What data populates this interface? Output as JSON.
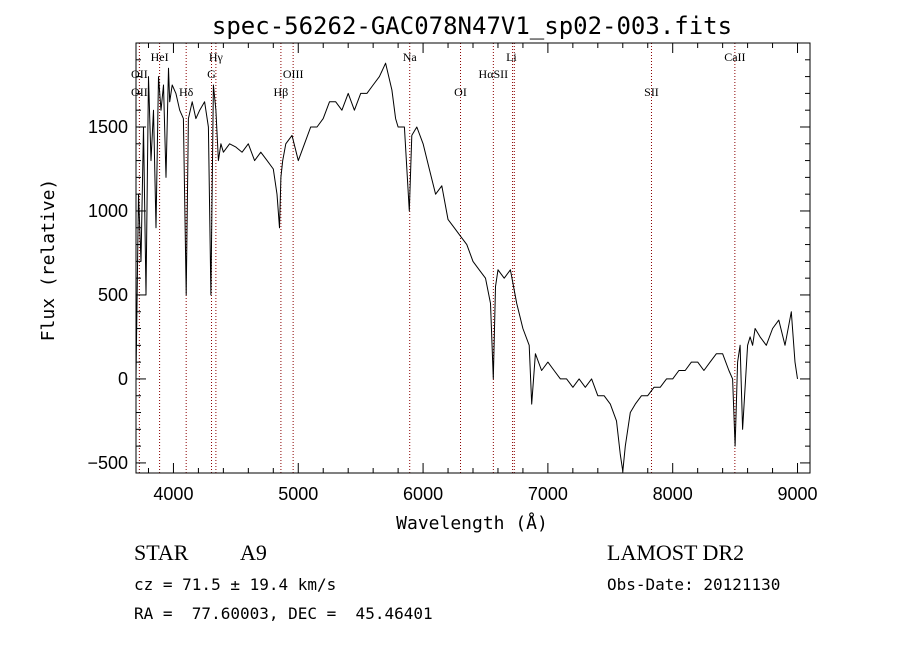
{
  "chart_data": {
    "type": "line",
    "title": "spec-56262-GAC078N47V1_sp02-003.fits",
    "xlabel": "Wavelength (Å)",
    "ylabel": "Flux (relative)",
    "xlim": [
      3700,
      9100
    ],
    "ylim": [
      -560,
      2000
    ],
    "xticks": [
      4000,
      5000,
      6000,
      7000,
      8000,
      9000
    ],
    "yticks": [
      -500,
      0,
      500,
      1000,
      1500
    ],
    "grid": false,
    "series": [
      {
        "x": [
          3700,
          3720,
          3740,
          3760,
          3780,
          3800,
          3820,
          3840,
          3860,
          3880,
          3900,
          3920,
          3940,
          3960,
          3970,
          3990,
          4020,
          4050,
          4080,
          4102,
          4120,
          4150,
          4180,
          4210,
          4250,
          4280,
          4300,
          4320,
          4340,
          4360,
          4380,
          4400,
          4450,
          4500,
          4550,
          4600,
          4650,
          4700,
          4750,
          4800,
          4830,
          4850,
          4861,
          4875,
          4900,
          4950,
          5000,
          5050,
          5100,
          5150,
          5200,
          5250,
          5300,
          5350,
          5400,
          5450,
          5500,
          5550,
          5600,
          5650,
          5700,
          5750,
          5780,
          5800,
          5850,
          5890,
          5910,
          5950,
          6000,
          6050,
          6100,
          6150,
          6200,
          6250,
          6300,
          6350,
          6400,
          6450,
          6500,
          6540,
          6563,
          6580,
          6600,
          6650,
          6700,
          6750,
          6800,
          6850,
          6870,
          6900,
          6950,
          7000,
          7050,
          7100,
          7150,
          7200,
          7250,
          7300,
          7350,
          7400,
          7450,
          7500,
          7550,
          7580,
          7600,
          7620,
          7640,
          7660,
          7700,
          7750,
          7800,
          7850,
          7900,
          7950,
          8000,
          8050,
          8100,
          8150,
          8200,
          8250,
          8300,
          8350,
          8400,
          8450,
          8480,
          8500,
          8520,
          8540,
          8560,
          8600,
          8620,
          8640,
          8660,
          8700,
          8750,
          8800,
          8850,
          8900,
          8950,
          8980,
          9000
        ],
        "values": [
          0,
          1100,
          700,
          1500,
          500,
          1800,
          1300,
          1600,
          900,
          1800,
          1600,
          1750,
          1200,
          1850,
          1650,
          1750,
          1700,
          1600,
          1550,
          500,
          1550,
          1650,
          1550,
          1600,
          1650,
          1500,
          500,
          1750,
          1600,
          1300,
          1400,
          1350,
          1400,
          1380,
          1350,
          1400,
          1300,
          1350,
          1300,
          1250,
          1100,
          900,
          1200,
          1300,
          1400,
          1450,
          1300,
          1400,
          1500,
          1500,
          1550,
          1650,
          1650,
          1600,
          1700,
          1600,
          1700,
          1700,
          1750,
          1800,
          1880,
          1720,
          1550,
          1500,
          1500,
          1000,
          1450,
          1500,
          1400,
          1250,
          1100,
          1150,
          950,
          900,
          850,
          800,
          700,
          650,
          600,
          450,
          0,
          550,
          650,
          600,
          650,
          450,
          300,
          200,
          -150,
          150,
          50,
          100,
          50,
          0,
          0,
          -50,
          0,
          -50,
          0,
          -100,
          -100,
          -150,
          -250,
          -450,
          -550,
          -400,
          -300,
          -200,
          -150,
          -100,
          -100,
          -50,
          -50,
          0,
          0,
          50,
          50,
          100,
          100,
          50,
          100,
          150,
          150,
          50,
          0,
          -400,
          100,
          200,
          -300,
          200,
          250,
          200,
          300,
          250,
          200,
          300,
          350,
          200,
          400,
          100,
          0
        ]
      }
    ],
    "line_labels": [
      {
        "label": "OII",
        "x": 3727,
        "row": 2
      },
      {
        "label": "HeI",
        "x": 3889,
        "row": 1
      },
      {
        "label": "OII",
        "x": 3727,
        "row": 3
      },
      {
        "label": "Hδ",
        "x": 4102,
        "row": 3
      },
      {
        "label": "Hγ",
        "x": 4340,
        "row": 1
      },
      {
        "label": "G",
        "x": 4305,
        "row": 2
      },
      {
        "label": "OIII",
        "x": 4959,
        "row": 2
      },
      {
        "label": "Hβ",
        "x": 4861,
        "row": 3
      },
      {
        "label": "Na",
        "x": 5893,
        "row": 1
      },
      {
        "label": "OI",
        "x": 6300,
        "row": 3
      },
      {
        "label": "Li",
        "x": 6708,
        "row": 1
      },
      {
        "label": "HαSII",
        "x": 6563,
        "row": 2
      },
      {
        "label": "SII",
        "x": 7830,
        "row": 3
      },
      {
        "label": "CaII",
        "x": 8498,
        "row": 1
      }
    ],
    "line_positions": [
      3727,
      3889,
      4102,
      4305,
      4340,
      4861,
      4959,
      5893,
      6300,
      6563,
      6717,
      6731,
      7830,
      8498
    ]
  },
  "footer": {
    "class_label": "STAR",
    "subclass": "A9",
    "survey": "LAMOST DR2",
    "cz": "cz = 71.5 ± 19.4 km/s",
    "obs_date": "Obs-Date: 20121130",
    "coords": "RA =  77.60003, DEC =  45.46401"
  },
  "colors": {
    "spectrum": "#000000",
    "line_markers": "#8b0000",
    "background": "#ffffff"
  }
}
